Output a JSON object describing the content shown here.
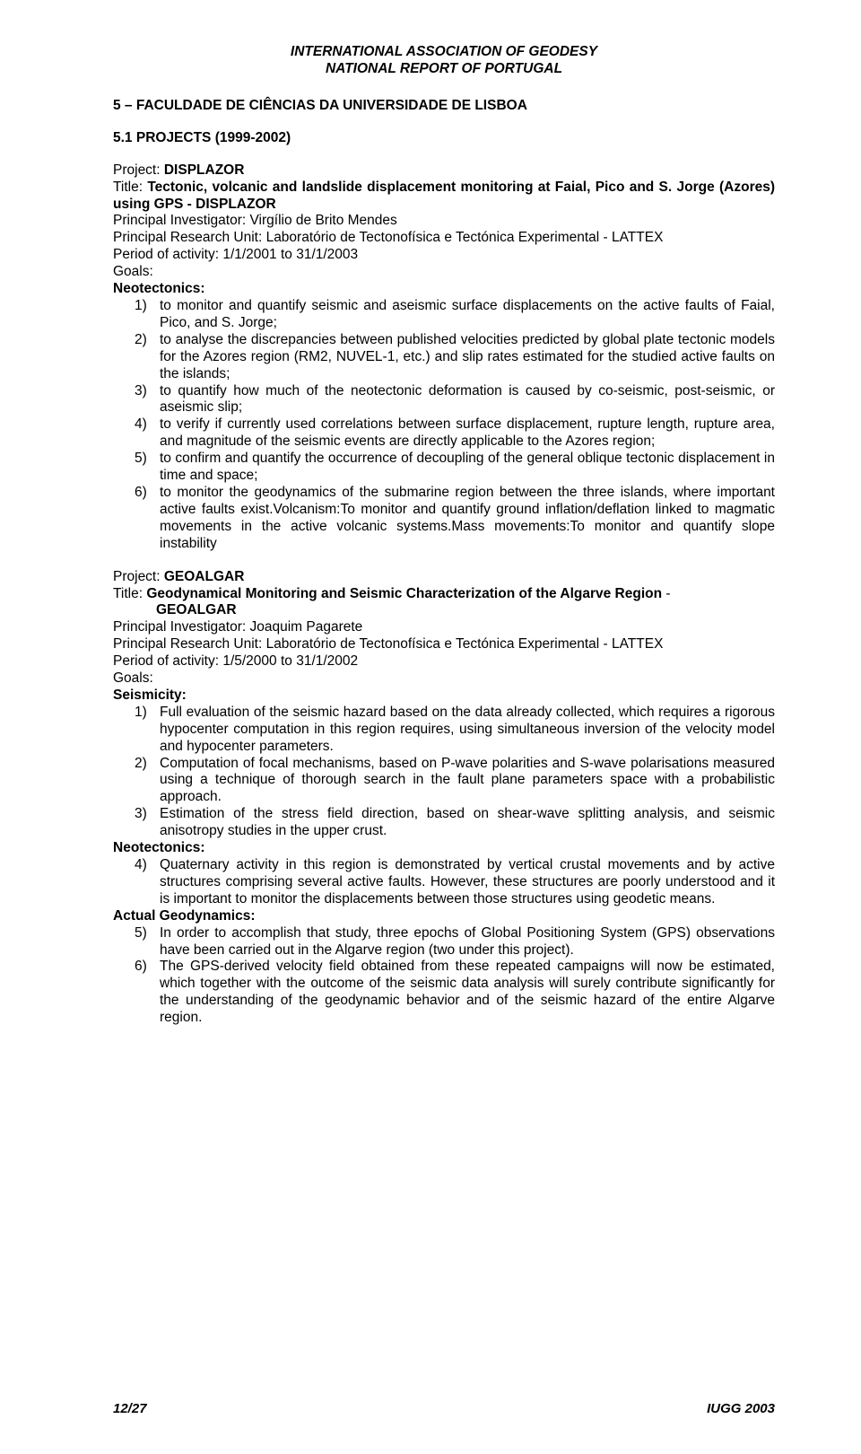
{
  "header": {
    "line1": "INTERNATIONAL ASSOCIATION OF GEODESY",
    "line2": "NATIONAL REPORT OF PORTUGAL"
  },
  "section5": {
    "heading": "5 – FACULDADE DE CIÊNCIAS DA UNIVERSIDADE DE LISBOA",
    "sub": "5.1 PROJECTS (1999-2002)"
  },
  "proj1": {
    "project_label": "Project: ",
    "project_name": "DISPLAZOR",
    "title_label": "Title: ",
    "title": "Tectonic, volcanic and landslide displacement monitoring at Faial, Pico and S. Jorge (Azores) using GPS  - DISPLAZOR",
    "pi": "Principal Investigator: Virgílio de Brito Mendes",
    "unit": "Principal Research Unit: Laboratório de Tectonofísica e Tectónica Experimental - LATTEX",
    "period": "Period of activity: 1/1/2001 to 31/1/2003",
    "goals_label": "Goals:",
    "neo_label": "Neotectonics:",
    "items": [
      "to monitor and quantify seismic and aseismic surface displacements on the active faults of Faial, Pico, and S. Jorge;",
      "to analyse the discrepancies between published velocities predicted by global plate tectonic models for the Azores region (RM2, NUVEL-1, etc.) and slip rates estimated for the studied active faults on the islands;",
      "to quantify how much of the neotectonic deformation is caused by co-seismic, post-seismic, or aseismic slip;",
      "to verify if currently used correlations between surface displacement, rupture length, rupture area, and magnitude of the seismic events are directly applicable to the Azores region;",
      "to confirm and quantify the occurrence of decoupling of the general oblique tectonic displacement in time and space;",
      "to monitor the geodynamics of the submarine region between the three islands, where important active faults exist.Volcanism:To monitor and quantify ground inflation/deflation linked to magmatic movements in the active volcanic systems.Mass movements:To monitor and quantify slope instability"
    ]
  },
  "proj2": {
    "project_label": "Project: ",
    "project_name": "GEOALGAR",
    "title_label": "Title: ",
    "title_bold": "Geodynamical Monitoring and Seismic Characterization of the Algarve Region",
    "title_rest": " - ",
    "title_line2": "GEOALGAR",
    "pi": "Principal Investigator: Joaquim Pagarete",
    "unit": "Principal Research Unit: Laboratório de Tectonofísica e Tectónica Experimental - LATTEX",
    "period": "Period of activity: 1/5/2000 to 31/1/2002",
    "goals_label": "Goals:",
    "seis_label": "Seismicity:",
    "seis_items": [
      "Full evaluation of the seismic hazard based on the data already collected, which requires a rigorous hypocenter computation in this region requires, using simultaneous inversion of the velocity model and hypocenter parameters.",
      "Computation of focal mechanisms, based on P-wave polarities and S-wave polarisations measured using a technique of thorough search in the fault plane parameters space with a probabilistic approach.",
      "Estimation of the stress field direction, based on shear-wave splitting analysis, and seismic anisotropy studies in the upper crust."
    ],
    "neo_label": "Neotectonics:",
    "neo_items": [
      "Quaternary activity in this region is demonstrated by vertical crustal movements and by active structures comprising several active faults. However, these structures are poorly understood and it is important to monitor the displacements between those structures using geodetic means."
    ],
    "geo_label": "Actual Geodynamics:",
    "geo_items": [
      "In order to accomplish that study, three epochs of Global Positioning System (GPS) observations have been carried out in the Algarve region (two under this project).",
      "The GPS-derived velocity field obtained from these repeated campaigns will now be estimated, which together with the outcome of the seismic data analysis will surely contribute significantly for the understanding of the geodynamic behavior and of the seismic hazard of the entire Algarve region."
    ]
  },
  "footer": {
    "left": "12/27",
    "right": "IUGG 2003"
  }
}
